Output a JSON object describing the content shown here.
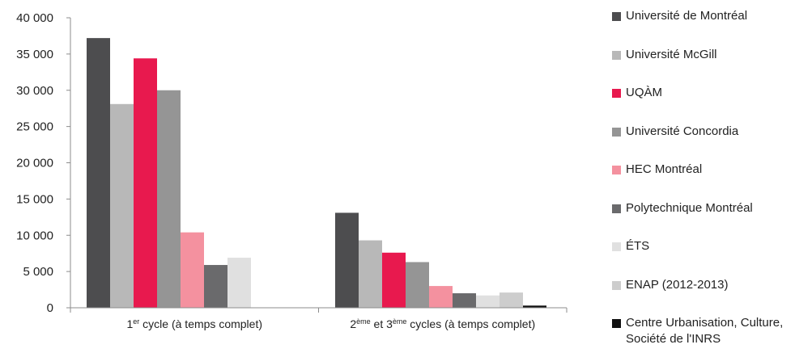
{
  "chart_data": {
    "type": "bar",
    "title": "",
    "xlabel": "",
    "ylabel": "",
    "ylim": [
      0,
      40000
    ],
    "y_ticks": [
      "0",
      "5 000",
      "10 000",
      "15 000",
      "20 000",
      "25 000",
      "30 000",
      "35 000",
      "40 000"
    ],
    "grid": false,
    "legend_position": "right",
    "categories": [
      {
        "main": "1",
        "sup": "er",
        "rest": " cycle (à temps complet)"
      },
      {
        "main": "2",
        "sup": "ème",
        "mid": " et 3",
        "sup2": "ème",
        "rest": " cycles (à temps complet)"
      }
    ],
    "series": [
      {
        "name": "Université de Montréal",
        "color": "#4d4d4f",
        "values": [
          37200,
          13100
        ]
      },
      {
        "name": "Université McGill",
        "color": "#b8b8b8",
        "values": [
          28100,
          9300
        ]
      },
      {
        "name": "UQÀM",
        "color": "#e8194e",
        "values": [
          34400,
          7600
        ]
      },
      {
        "name": "Université Concordia",
        "color": "#959595",
        "values": [
          30000,
          6300
        ]
      },
      {
        "name": "HEC Montréal",
        "color": "#f4919f",
        "values": [
          10400,
          3000
        ]
      },
      {
        "name": "Polytechnique Montréal",
        "color": "#6a6a6c",
        "values": [
          5900,
          2000
        ]
      },
      {
        "name": "ÉTS",
        "color": "#e0e0e0",
        "values": [
          6900,
          1700
        ]
      },
      {
        "name": "ENAP (2012-2013)",
        "color": "#cdcdcd",
        "values": [
          null,
          2100
        ]
      },
      {
        "name": "Centre Urbanisation, Culture, Société de l'INRS",
        "color": "#111111",
        "values": [
          null,
          300
        ]
      }
    ]
  }
}
